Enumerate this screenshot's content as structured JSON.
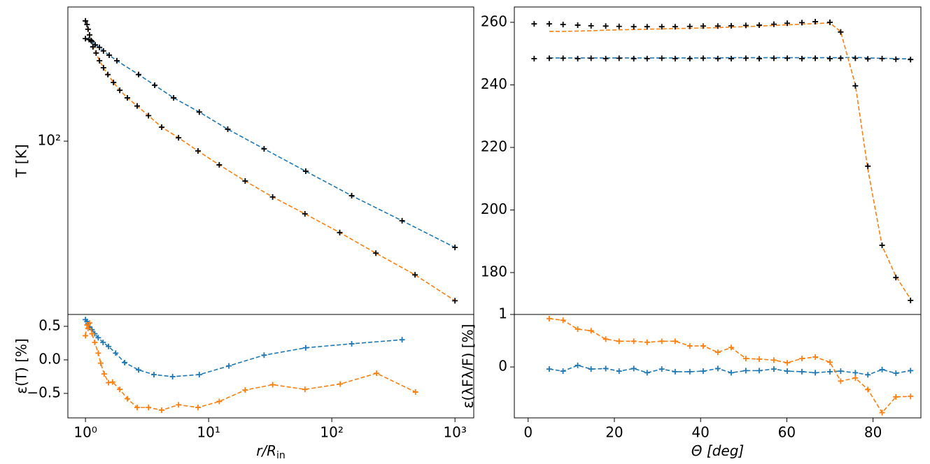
{
  "chart_data": [
    {
      "type": "line",
      "xscale": "log",
      "yscale": "log",
      "xlim": [
        0.72,
        1420
      ],
      "ylim": [
        22,
        323
      ],
      "yticks": [
        {
          "value": 100,
          "label": "10²"
        }
      ],
      "ylabel": "T [K]",
      "series": [
        {
          "color": "#1f77b4",
          "line": "dashed",
          "marker": "+",
          "marker_color": "#000000",
          "x": [
            1.0,
            1.07,
            1.13,
            1.2,
            1.3,
            1.4,
            1.56,
            1.8,
            2.7,
            3.65,
            5.2,
            8.4,
            14.3,
            28.2,
            61.4,
            145,
            372,
            1000
          ],
          "values": [
            245,
            243,
            239,
            232,
            227,
            220,
            212,
            202,
            179,
            163,
            146,
            129,
            111,
            93.5,
            76.9,
            62.1,
            49.9,
            39.5
          ]
        },
        {
          "color": "#ff7f0e",
          "line": "dashed",
          "marker": "+",
          "marker_color": "#000000",
          "x": [
            1.0,
            1.03,
            1.05,
            1.08,
            1.11,
            1.15,
            1.22,
            1.3,
            1.4,
            1.52,
            1.69,
            1.9,
            2.19,
            2.63,
            3.25,
            4.16,
            5.7,
            8.2,
            12.2,
            19.8,
            33.1,
            60.5,
            116,
            228,
            474,
            1000
          ],
          "values": [
            286,
            277,
            266,
            253,
            241,
            228,
            216,
            202,
            190,
            179,
            167,
            156,
            146,
            136,
            125,
            113,
            103,
            91.8,
            81.3,
            70.6,
            61.4,
            53,
            45,
            37.6,
            31.1,
            24.8
          ]
        }
      ]
    },
    {
      "type": "line",
      "xscale": "log",
      "yscale": "linear",
      "xlim": [
        0.72,
        1420
      ],
      "ylim": [
        -0.865,
        0.677
      ],
      "xticks": [
        {
          "value": 1,
          "label": "10⁰"
        },
        {
          "value": 10,
          "label": "10¹"
        },
        {
          "value": 100,
          "label": "10²"
        },
        {
          "value": 1000,
          "label": "10³"
        }
      ],
      "yticks": [
        {
          "value": -0.5,
          "label": "−0.5"
        },
        {
          "value": 0,
          "label": "0.0"
        },
        0.5
      ],
      "xlabel": "r/R",
      "xlabel_subscript": "in",
      "ylabel": "ε(T) [%]",
      "series": [
        {
          "color": "#1f77b4",
          "line": "dashed",
          "marker": "+",
          "x": [
            1.0,
            1.03,
            1.05,
            1.08,
            1.13,
            1.19,
            1.27,
            1.39,
            1.54,
            1.76,
            2.08,
            2.7,
            3.6,
            5.1,
            8.4,
            14.6,
            28.2,
            61.4,
            145,
            372
          ],
          "values": [
            0.6,
            0.57,
            0.54,
            0.49,
            0.45,
            0.39,
            0.33,
            0.26,
            0.2,
            0.1,
            -0.04,
            -0.15,
            -0.22,
            -0.25,
            -0.22,
            -0.09,
            0.07,
            0.18,
            0.24,
            0.3
          ]
        },
        {
          "color": "#ff7f0e",
          "line": "dashed",
          "marker": "+",
          "x": [
            1.0,
            1.03,
            1.05,
            1.08,
            1.13,
            1.19,
            1.27,
            1.33,
            1.42,
            1.54,
            1.66,
            1.9,
            2.19,
            2.63,
            3.25,
            4.16,
            5.7,
            8.2,
            12.2,
            19.8,
            33.1,
            60.5,
            117,
            231,
            478
          ],
          "values": [
            0.36,
            0.52,
            0.47,
            0.55,
            0.39,
            0.26,
            0.1,
            -0.05,
            -0.21,
            -0.34,
            -0.33,
            -0.44,
            -0.58,
            -0.71,
            -0.71,
            -0.75,
            -0.67,
            -0.71,
            -0.62,
            -0.45,
            -0.37,
            -0.44,
            -0.36,
            -0.2,
            -0.48
          ]
        }
      ]
    },
    {
      "type": "line",
      "xscale": "linear",
      "yscale": "linear",
      "xlim": [
        -3.2,
        91.1
      ],
      "ylim": [
        166.6,
        264.9
      ],
      "yticks": [
        180,
        200,
        220,
        240,
        260
      ],
      "x": [
        1.4,
        4.9,
        8.1,
        11.5,
        14.6,
        18.0,
        21.1,
        24.5,
        27.6,
        31.0,
        34.1,
        37.5,
        40.6,
        44.0,
        47.1,
        50.5,
        53.6,
        57.0,
        60.1,
        63.5,
        66.6,
        70.0,
        72.5,
        75.9,
        78.8,
        82.1,
        85.3,
        88.7
      ],
      "series": [
        {
          "color": "#1f77b4",
          "line": "dashed",
          "marker": "none",
          "values": [
            null,
            248.6,
            248.6,
            248.6,
            248.6,
            248.6,
            248.6,
            248.6,
            248.6,
            248.6,
            248.6,
            248.6,
            248.6,
            248.6,
            248.7,
            248.7,
            248.7,
            248.7,
            248.7,
            248.7,
            248.7,
            248.7,
            248.7,
            248.8,
            248.6,
            248.5,
            248.4,
            248.3
          ]
        },
        {
          "color": "#ff7f0e",
          "line": "dashed",
          "marker": "none",
          "values": [
            null,
            257.1,
            257.1,
            257.2,
            257.3,
            257.5,
            257.6,
            257.7,
            257.8,
            257.9,
            258.0,
            258.1,
            258.2,
            258.3,
            258.5,
            258.6,
            258.8,
            259.0,
            259.2,
            259.4,
            259.6,
            259.8,
            257.0,
            240.0,
            213.0,
            188.5,
            178.8,
            171.5
          ]
        },
        {
          "color": "#000000",
          "line": "none",
          "marker": "+",
          "values": [
            248.4,
            248.5,
            248.5,
            248.4,
            248.5,
            248.4,
            248.5,
            248.4,
            248.4,
            248.5,
            248.4,
            248.4,
            248.5,
            248.4,
            248.4,
            248.5,
            248.4,
            248.5,
            248.5,
            248.4,
            248.5,
            248.4,
            248.5,
            248.5,
            248.3,
            248.4,
            248.2,
            248.1
          ]
        },
        {
          "color": "#000000",
          "line": "none",
          "marker": "+",
          "values": [
            259.5,
            259.5,
            259.3,
            259.1,
            258.9,
            258.8,
            258.7,
            258.6,
            258.6,
            258.6,
            258.6,
            258.7,
            258.8,
            258.8,
            258.9,
            259.0,
            259.1,
            259.4,
            259.7,
            259.9,
            260.2,
            260.0,
            256.9,
            239.7,
            214.0,
            188.7,
            178.4,
            171.1
          ]
        }
      ]
    },
    {
      "type": "line",
      "xscale": "linear",
      "yscale": "linear",
      "xlim": [
        -3.2,
        91.1
      ],
      "ylim": [
        -0.97,
        1
      ],
      "xticks": [
        0,
        20,
        40,
        60,
        80
      ],
      "yticks": [
        0,
        1
      ],
      "xlabel": "Θ [deg]",
      "ylabel": "ε(λFλ/F) [%]",
      "x": [
        1.4,
        4.9,
        8.1,
        11.5,
        14.6,
        18.0,
        21.1,
        24.5,
        27.6,
        31.0,
        34.1,
        37.5,
        40.6,
        44.0,
        47.1,
        50.5,
        53.6,
        57.0,
        60.1,
        63.5,
        66.6,
        70.0,
        72.5,
        75.9,
        78.8,
        82.1,
        85.3,
        88.7
      ],
      "series": [
        {
          "color": "#1f77b4",
          "line": "dashed",
          "marker": "+",
          "values": [
            null,
            -0.04,
            -0.08,
            0.03,
            -0.04,
            -0.03,
            -0.08,
            -0.03,
            -0.11,
            -0.04,
            -0.09,
            -0.09,
            -0.08,
            -0.03,
            -0.11,
            -0.07,
            -0.07,
            -0.04,
            -0.08,
            -0.09,
            -0.11,
            -0.09,
            -0.08,
            -0.11,
            -0.15,
            -0.05,
            -0.12,
            -0.07
          ]
        },
        {
          "color": "#ff7f0e",
          "line": "dashed",
          "marker": "+",
          "values": [
            null,
            0.92,
            0.89,
            0.72,
            0.69,
            0.53,
            0.49,
            0.49,
            0.47,
            0.49,
            0.49,
            0.4,
            0.4,
            0.28,
            0.37,
            0.16,
            0.15,
            0.13,
            0.08,
            0.16,
            0.19,
            0.09,
            -0.27,
            -0.21,
            -0.43,
            -0.87,
            -0.57,
            -0.56
          ]
        }
      ]
    }
  ]
}
